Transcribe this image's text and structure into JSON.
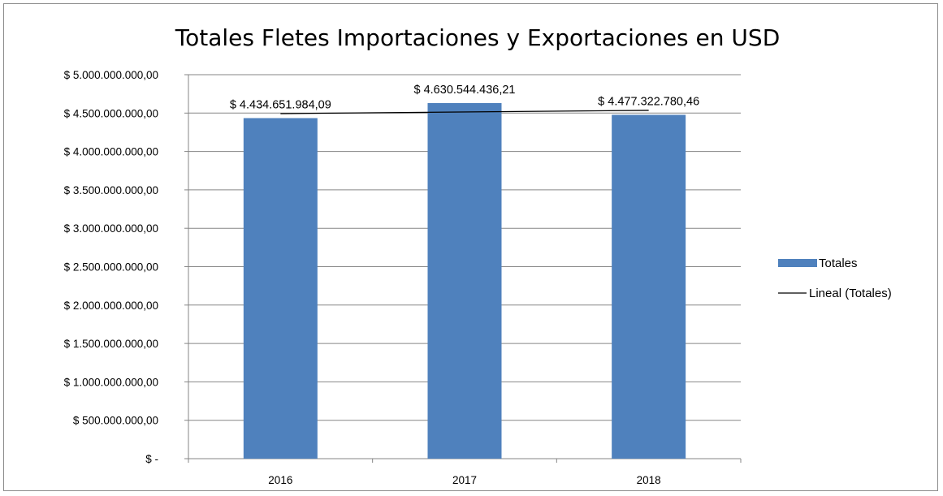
{
  "chart_data": {
    "type": "bar",
    "title": "Totales Fletes Importaciones y Exportaciones en USD",
    "xlabel": "",
    "ylabel": "",
    "categories": [
      "2016",
      "2017",
      "2018"
    ],
    "series": [
      {
        "name": "Totales",
        "values": [
          4434651984.09,
          4630544436.21,
          4477322780.46
        ],
        "data_labels": [
          "$ 4.434.651.984,09",
          "$ 4.630.544.436,21",
          "$ 4.477.322.780,46"
        ],
        "color": "#4f81bd"
      }
    ],
    "trendline": {
      "name": "Lineal (Totales)",
      "type": "linear",
      "color": "#000000"
    },
    "ylim": [
      0,
      5000000000
    ],
    "yticks": [
      0,
      500000000,
      1000000000,
      1500000000,
      2000000000,
      2500000000,
      3000000000,
      3500000000,
      4000000000,
      4500000000,
      5000000000
    ],
    "ytick_labels": [
      "$ -",
      "$ 500.000.000,00",
      "$ 1.000.000.000,00",
      "$ 1.500.000.000,00",
      "$ 2.000.000.000,00",
      "$ 2.500.000.000,00",
      "$ 3.000.000.000,00",
      "$ 3.500.000.000,00",
      "$ 4.000.000.000,00",
      "$ 4.500.000.000,00",
      "$ 5.000.000.000,00"
    ],
    "grid": true,
    "legend_position": "right"
  }
}
